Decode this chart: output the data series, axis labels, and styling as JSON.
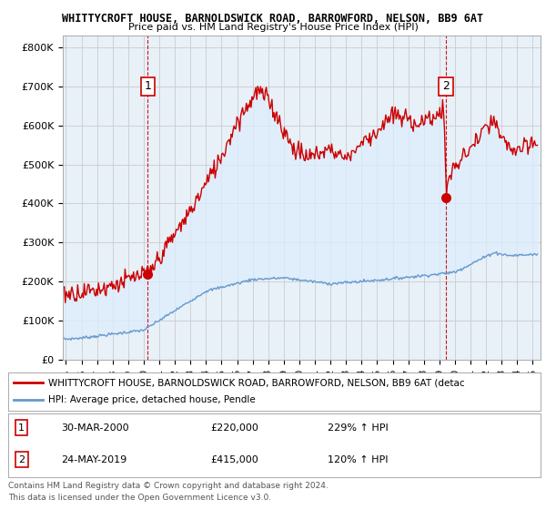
{
  "title1": "WHITTYCROFT HOUSE, BARNOLDSWICK ROAD, BARROWFORD, NELSON, BB9 6AT",
  "title2": "Price paid vs. HM Land Registry's House Price Index (HPI)",
  "ylabel_ticks": [
    "£0",
    "£100K",
    "£200K",
    "£300K",
    "£400K",
    "£500K",
    "£600K",
    "£700K",
    "£800K"
  ],
  "ytick_values": [
    0,
    100000,
    200000,
    300000,
    400000,
    500000,
    600000,
    700000,
    800000
  ],
  "ylim": [
    0,
    830000
  ],
  "xlim_start": 1994.8,
  "xlim_end": 2025.5,
  "xtick_years": [
    1995,
    1996,
    1997,
    1998,
    1999,
    2000,
    2001,
    2002,
    2003,
    2004,
    2005,
    2006,
    2007,
    2008,
    2009,
    2010,
    2011,
    2012,
    2013,
    2014,
    2015,
    2016,
    2017,
    2018,
    2019,
    2020,
    2021,
    2022,
    2023,
    2024,
    2025
  ],
  "red_color": "#cc0000",
  "blue_color": "#6699cc",
  "fill_color": "#ddeeff",
  "dashed_red": "#cc0000",
  "marker1_year": 2000.25,
  "marker1_value": 220000,
  "marker2_year": 2019.42,
  "marker2_value": 415000,
  "label1_year": 2000.25,
  "label1_value": 700000,
  "label2_year": 2019.42,
  "label2_value": 700000,
  "legend_label_red": "WHITTYCROFT HOUSE, BARNOLDSWICK ROAD, BARROWFORD, NELSON, BB9 6AT (detac",
  "legend_label_blue": "HPI: Average price, detached house, Pendle",
  "annotation1_label": "1",
  "annotation1_date": "30-MAR-2000",
  "annotation1_price": "£220,000",
  "annotation1_hpi": "229% ↑ HPI",
  "annotation2_label": "2",
  "annotation2_date": "24-MAY-2019",
  "annotation2_price": "£415,000",
  "annotation2_hpi": "120% ↑ HPI",
  "footer1": "Contains HM Land Registry data © Crown copyright and database right 2024.",
  "footer2": "This data is licensed under the Open Government Licence v3.0.",
  "bg_color": "#ffffff",
  "grid_color": "#cccccc",
  "box_color": "#cc0000"
}
